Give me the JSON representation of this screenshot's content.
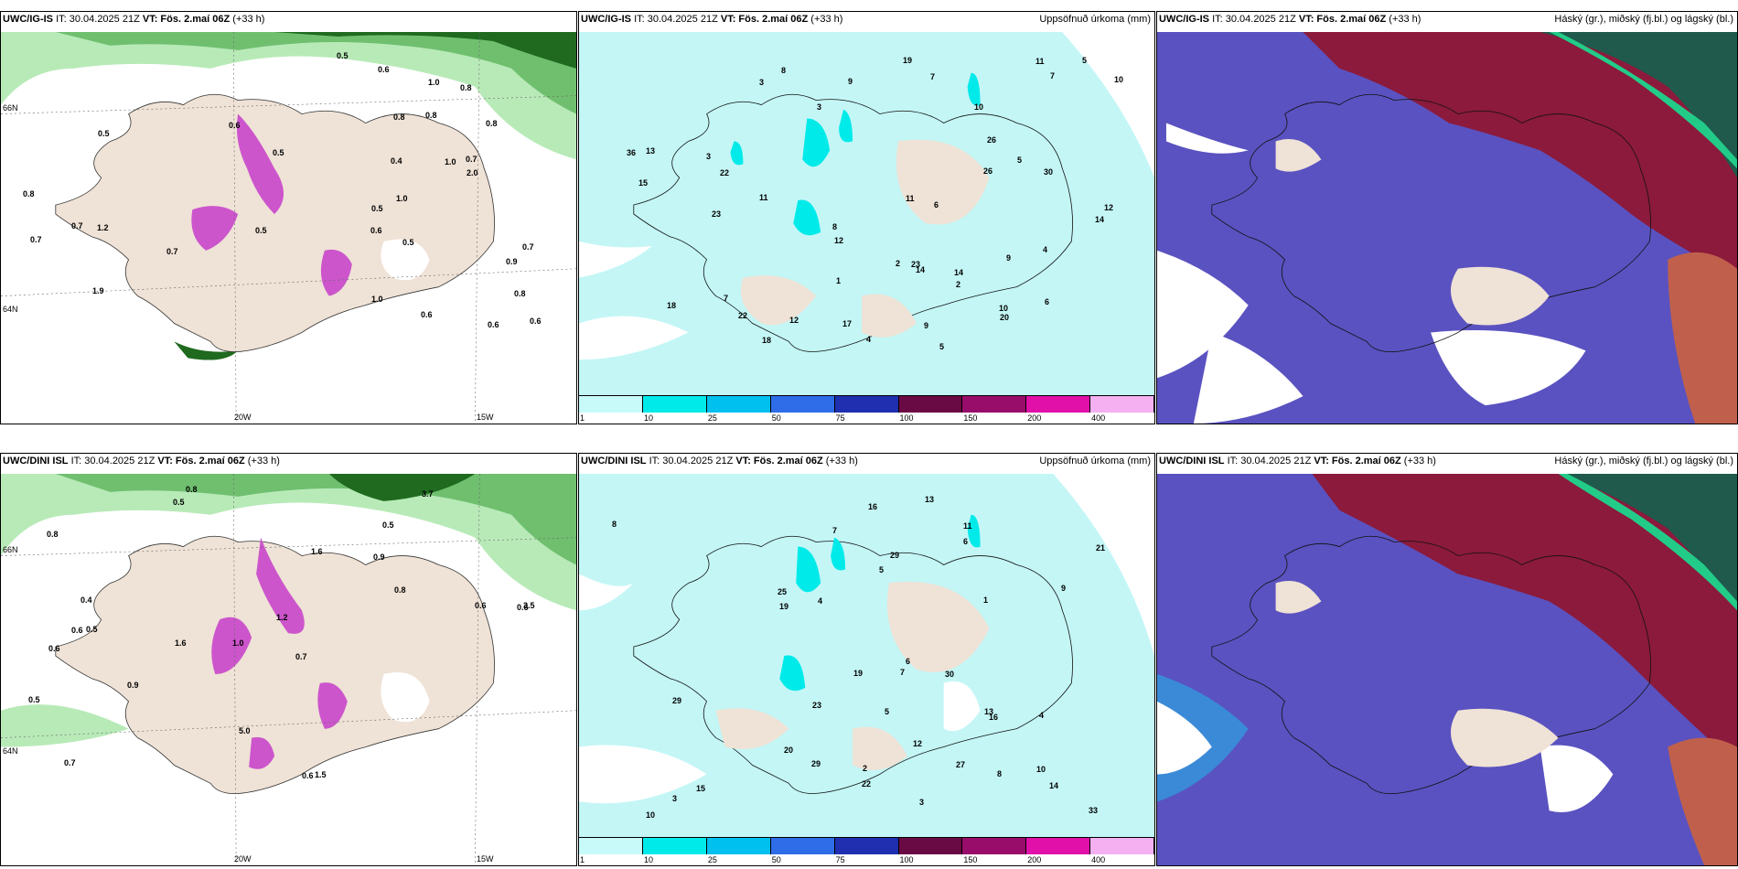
{
  "panels": [
    {
      "model": "UWC/IG-IS",
      "it": "IT: 30.04.2025 21Z",
      "vt": "VT: Fös. 2.maí 06Z",
      "lead": "(+33 h)",
      "right": ""
    },
    {
      "model": "UWC/IG-IS",
      "it": "IT: 30.04.2025 21Z",
      "vt": "VT: Fös. 2.maí 06Z",
      "lead": "(+33 h)",
      "right": "Uppsöfnuð úrkoma (mm)"
    },
    {
      "model": "UWC/IG-IS",
      "it": "IT: 30.04.2025 21Z",
      "vt": "VT: Fös. 2.maí 06Z",
      "lead": "(+33 h)",
      "right": "Háský (gr.), miðský (fj.bl.) og lágský (bl.)"
    },
    {
      "model": "UWC/DINI ISL",
      "it": "IT: 30.04.2025 21Z",
      "vt": "VT: Fös. 2.maí 06Z",
      "lead": "(+33 h)",
      "right": ""
    },
    {
      "model": "UWC/DINI ISL",
      "it": "IT: 30.04.2025 21Z",
      "vt": "VT: Fös. 2.maí 06Z",
      "lead": "(+33 h)",
      "right": "Uppsöfnuð úrkoma (mm)"
    },
    {
      "model": "UWC/DINI ISL",
      "it": "IT: 30.04.2025 21Z",
      "vt": "VT: Fös. 2.maí 06Z",
      "lead": "(+33 h)",
      "right": "Háský (gr.), miðský (fj.bl.) og lágský (bl.)"
    }
  ],
  "axis_labels": {
    "lon_20w": "20W",
    "lon_15w": "15W",
    "lat_66n": "66N",
    "lat_64n": "64N"
  },
  "colorbar": {
    "ticks": [
      "1",
      "10",
      "25",
      "50",
      "75",
      "100",
      "150",
      "200",
      "400"
    ],
    "colors": [
      "#c8fafa",
      "#00eaea",
      "#00c0f0",
      "#2f6de8",
      "#1f2fb0",
      "#6a0a45",
      "#990d6a",
      "#e010a8",
      "#f4b0f0"
    ]
  },
  "precip_top": [
    "5",
    "3",
    "7",
    "3",
    "5",
    "9",
    "14",
    "11",
    "12",
    "22",
    "18",
    "36",
    "8",
    "23",
    "26",
    "11",
    "15",
    "7",
    "9",
    "30",
    "10",
    "14",
    "18",
    "20",
    "6",
    "26",
    "23",
    "22",
    "4",
    "3",
    "2",
    "5",
    "10",
    "12",
    "8",
    "17",
    "19",
    "13",
    "12",
    "14",
    "9",
    "11",
    "10",
    "6",
    "7",
    "4",
    "2",
    "1"
  ],
  "precip_bottom": [
    "3",
    "4",
    "6",
    "5",
    "7",
    "13",
    "10",
    "11",
    "8",
    "20",
    "33",
    "19",
    "29",
    "16",
    "27",
    "25",
    "13",
    "29",
    "19",
    "21",
    "8",
    "15",
    "22",
    "30",
    "16",
    "6",
    "4",
    "5",
    "9",
    "12",
    "14",
    "23",
    "29",
    "10",
    "7",
    "3",
    "2",
    "1"
  ],
  "wind_top": [
    "0.6",
    "0.7",
    "1.0",
    "0.9",
    "1.0",
    "0.8",
    "0.7",
    "0.5",
    "0.8",
    "0.6",
    "1.0",
    "0.5",
    "0.7",
    "0.5",
    "0.7",
    "0.6",
    "0.8",
    "0.7",
    "1.0",
    "0.6",
    "0.5",
    "0.8",
    "0.4",
    "0.6",
    "2.0",
    "1.9",
    "0.5",
    "0.8",
    "0.6",
    "1.2",
    "0.8",
    "0.5"
  ],
  "wind_bottom": [
    "0.8",
    "0.5",
    "0.6",
    "1.0",
    "0.7",
    "0.5",
    "0.8",
    "0.9",
    "0.6",
    "1.6",
    "1.2",
    "0.7",
    "0.5",
    "1.6",
    "0.6",
    "1.5",
    "5.0",
    "3.7",
    "0.8",
    "0.9",
    "0.4",
    "0.6",
    "3.5",
    "0.6",
    "0.5"
  ],
  "legend_colors": {
    "land": "#efe2d6",
    "sea_precip": "#c4f6f6",
    "strong_wind": "#1f6a1f",
    "medium_wind": "#6fbf6f",
    "light_wind": "#b8eab8",
    "high_cloud": "#8b1a3c",
    "mid_cloud": "#5a52c0",
    "low_cloud": "#3a8ad8",
    "mid_edge": "#1f5a4c",
    "accent_magenta": "#cc55cc"
  }
}
